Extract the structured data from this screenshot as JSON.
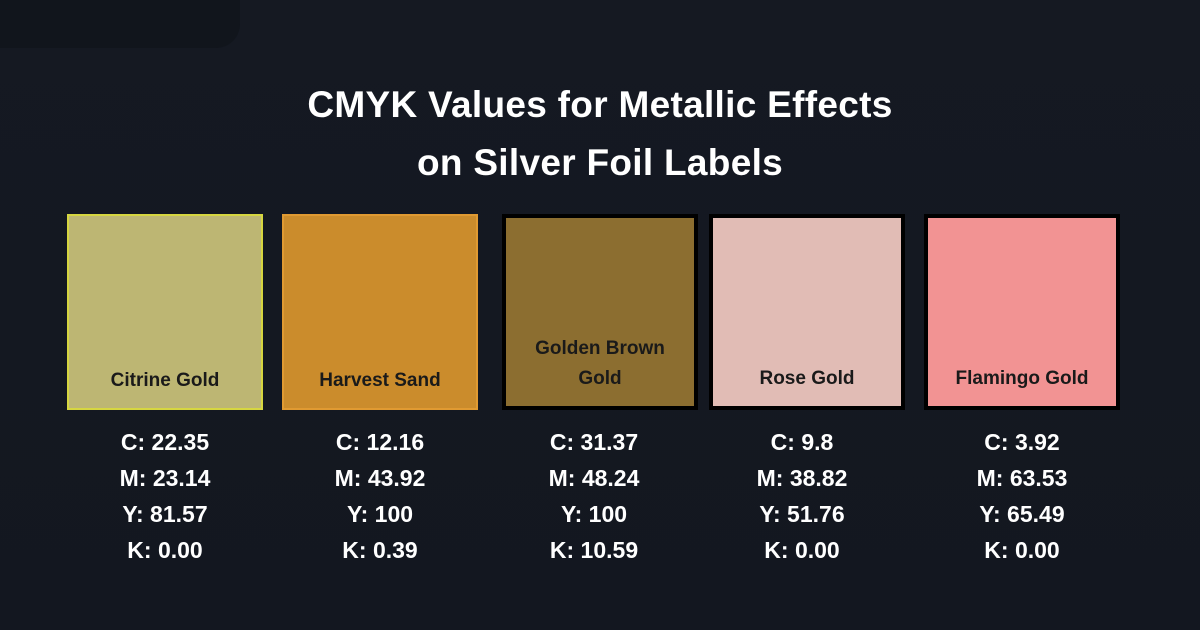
{
  "title": {
    "line1": "CMYK Values for Metallic Effects",
    "line2": "on Silver Foil Labels"
  },
  "swatches": [
    {
      "name": "Citrine Gold",
      "fill": "#bdb673",
      "border": "#d6d640",
      "c": "C: 22.35",
      "m": "M: 23.14",
      "y": "Y: 81.57",
      "k": "K: 0.00"
    },
    {
      "name": "Harvest Sand",
      "fill": "#cb8c2c",
      "border": "#e09a32",
      "c": "C: 12.16",
      "m": "M: 43.92",
      "y": "Y: 100",
      "k": "K: 0.39"
    },
    {
      "name": "Golden Brown Gold",
      "fill": "#8c6e30",
      "border": "#000000",
      "c": "C: 31.37",
      "m": "M: 48.24",
      "y": "Y: 100",
      "k": "K: 10.59"
    },
    {
      "name": "Rose Gold",
      "fill": "#e1bcb5",
      "border": "#000000",
      "c": "C: 9.8",
      "m": "M: 38.82",
      "y": "Y: 51.76",
      "k": "K: 0.00"
    },
    {
      "name": "Flamingo Gold",
      "fill": "#f29393",
      "border": "#000000",
      "c": "C: 3.92",
      "m": "M: 63.53",
      "y": "Y: 65.49",
      "k": "K: 0.00"
    }
  ]
}
